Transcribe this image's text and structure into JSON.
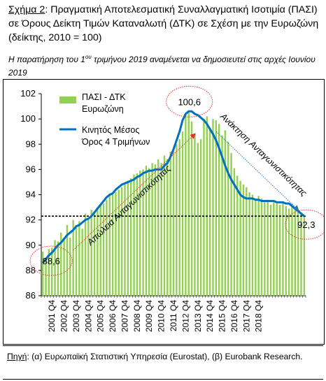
{
  "figure_label": "Σχήμα 2",
  "title_text": ": Πραγματική Αποτελεσματική Συναλλαγματική Ισοτιμία (ΠΑΣΙ) σε Όρους Δείκτη Τιμών Καταναλωτή (ΔΤΚ) σε Σχέση με την Ευρωζώνη (δείκτης, 2010 = 100)",
  "note": {
    "before": "Η παρατήρηση του 1",
    "sup": "ου",
    "after": " τριμήνου 2019 αναμένεται να δημοσιευτεί στις αρχές Ιουνίου 2019"
  },
  "source": {
    "label": "Πηγή",
    "text": ": (α) Ευρωπαϊκή Στατιστική Υπηρεσία (Eurostat), (β) Eurobank Research."
  },
  "colors": {
    "bars": "#92d050",
    "line": "#0070c0",
    "dashed_line": "#000000",
    "circle": "#e03030",
    "arrow_up": "#e03030",
    "arrow_down": "#2e75b6"
  },
  "chart_data": {
    "type": "bar",
    "xlabel": "",
    "ylabel": "",
    "ylim": [
      86,
      102
    ],
    "yticks": [
      86,
      88,
      90,
      92,
      94,
      96,
      98,
      100,
      102
    ],
    "x_tick_labels": [
      "2001 Q4",
      "2002 Q4",
      "2003 Q4",
      "2004 Q4",
      "2005 Q4",
      "2006 Q4",
      "2007 Q4",
      "2008 Q4",
      "2009 Q4",
      "2010 Q4",
      "2011 Q4",
      "2012 Q4",
      "2013 Q4",
      "2014 Q4",
      "2015 Q4",
      "2016 Q4",
      "2017 Q4",
      "2018 Q4"
    ],
    "first_label_index": 3,
    "grid": false,
    "legend_placement": "top-center",
    "series": [
      {
        "name": "ΠΑΣΙ - ΔΤΚ Ευρωζώνη",
        "kind": "bar",
        "values": [
          89.5,
          89.0,
          89.7,
          89.8,
          90.4,
          90.3,
          91.0,
          90.6,
          91.6,
          90.6,
          92.0,
          91.5,
          91.9,
          91.3,
          92.5,
          92.0,
          92.8,
          92.6,
          93.0,
          93.2,
          93.3,
          93.6,
          94.0,
          94.0,
          94.2,
          94.4,
          94.6,
          94.9,
          95.1,
          95.3,
          95.6,
          95.7,
          95.9,
          96.0,
          96.3,
          96.1,
          96.5,
          96.4,
          96.8,
          96.5,
          97.1,
          96.8,
          97.4,
          97.6,
          98.0,
          98.4,
          99.0,
          100.4,
          100.5,
          99.8,
          98.8,
          98.1,
          98.4,
          100.0,
          100.2,
          99.2,
          100.0,
          99.9,
          99.6,
          98.7,
          99.1,
          98.2,
          97.3,
          96.1,
          95.5,
          95.1,
          94.8,
          94.6,
          94.2,
          94.0,
          93.6,
          93.9,
          93.7,
          93.4,
          93.6,
          93.2,
          93.4,
          93.3,
          93.2,
          93.4,
          93.1,
          92.9,
          93.3,
          93.0,
          92.8,
          92.6,
          92.3
        ]
      },
      {
        "name": "Κινητός Μέσος Όρος 4 Τριμήνων",
        "kind": "line",
        "values": [
          88.6,
          88.9,
          89.2,
          89.4,
          89.7,
          90.0,
          90.2,
          90.5,
          90.8,
          91.0,
          91.2,
          91.5,
          91.6,
          91.8,
          92.0,
          92.1,
          92.3,
          92.6,
          92.9,
          93.2,
          93.5,
          93.8,
          94.0,
          94.1,
          94.4,
          94.6,
          94.8,
          94.9,
          95.0,
          95.1,
          95.2,
          95.4,
          95.5,
          95.7,
          95.8,
          95.9,
          95.9,
          96.0,
          96.0,
          96.0,
          96.3,
          96.5,
          97.0,
          97.6,
          98.3,
          99.0,
          99.9,
          100.4,
          100.6,
          100.6,
          100.4,
          100.3,
          100.1,
          99.9,
          99.6,
          99.2,
          98.8,
          98.3,
          97.7,
          97.0,
          96.3,
          95.7,
          95.2,
          94.8,
          94.4,
          94.0,
          93.8,
          93.7,
          93.7,
          93.7,
          93.6,
          93.6,
          93.5,
          93.5,
          93.5,
          93.5,
          93.5,
          93.4,
          93.4,
          93.4,
          93.3,
          93.3,
          93.1,
          92.9,
          92.7,
          92.5,
          92.3
        ]
      }
    ],
    "reference_line": {
      "value": 92.3,
      "style": "dashed"
    },
    "annotations": [
      {
        "text": "88,6",
        "series_index": 0
      },
      {
        "text": "100,6",
        "series_index": 48
      },
      {
        "text": "92,3",
        "series_index": 86
      },
      {
        "text": "Απώλεια Ανταγωνιστικότητας",
        "direction": "up"
      },
      {
        "text": "Ανάκτηση Ανταγωνιστικότητας",
        "direction": "down"
      }
    ]
  }
}
